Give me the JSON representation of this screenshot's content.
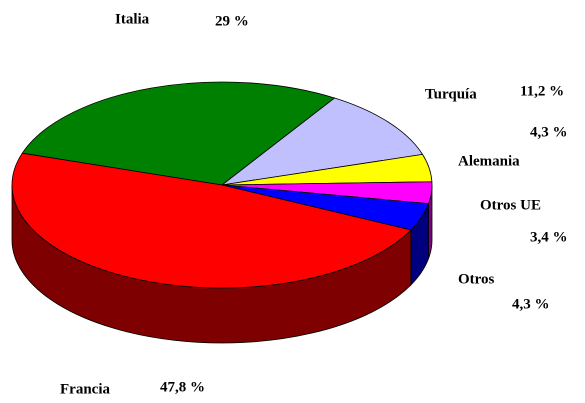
{
  "chart_data": {
    "type": "pie",
    "categories": [
      "Italia",
      "Turquía",
      "Alemania",
      "Otros UE",
      "Otros",
      "Francia"
    ],
    "values": [
      29,
      11.2,
      4.3,
      3.4,
      4.3,
      47.8
    ],
    "value_labels": [
      "29 %",
      "11,2 %",
      "4,3 %",
      "3,4 %",
      "4,3 %",
      "47,8 %"
    ],
    "colors": [
      "#008000",
      "#c0c0ff",
      "#ffff00",
      "#ff00ff",
      "#0000ff",
      "#ff0000"
    ]
  }
}
